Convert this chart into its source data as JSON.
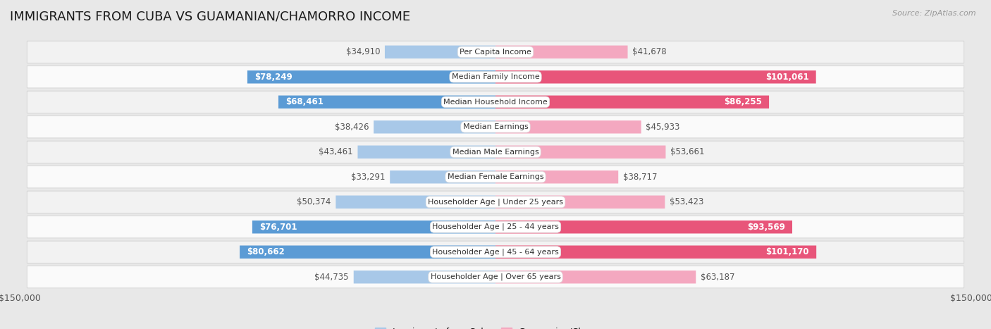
{
  "title": "IMMIGRANTS FROM CUBA VS GUAMANIAN/CHAMORRO INCOME",
  "source": "Source: ZipAtlas.com",
  "categories": [
    "Per Capita Income",
    "Median Family Income",
    "Median Household Income",
    "Median Earnings",
    "Median Male Earnings",
    "Median Female Earnings",
    "Householder Age | Under 25 years",
    "Householder Age | 25 - 44 years",
    "Householder Age | 45 - 64 years",
    "Householder Age | Over 65 years"
  ],
  "cuba_values": [
    34910,
    78249,
    68461,
    38426,
    43461,
    33291,
    50374,
    76701,
    80662,
    44735
  ],
  "guam_values": [
    41678,
    101061,
    86255,
    45933,
    53661,
    38717,
    53423,
    93569,
    101170,
    63187
  ],
  "cuba_labels": [
    "$34,910",
    "$78,249",
    "$68,461",
    "$38,426",
    "$43,461",
    "$33,291",
    "$50,374",
    "$76,701",
    "$80,662",
    "$44,735"
  ],
  "guam_labels": [
    "$41,678",
    "$101,061",
    "$86,255",
    "$45,933",
    "$53,661",
    "$38,717",
    "$53,423",
    "$93,569",
    "$101,170",
    "$63,187"
  ],
  "cuba_color_light": "#a8c8e8",
  "cuba_color_dark": "#5b9bd5",
  "guam_color_light": "#f4a8c0",
  "guam_color_dark": "#e8557a",
  "cuba_dark_threshold": 60000,
  "guam_dark_threshold": 75000,
  "max_value": 150000,
  "legend_cuba": "Immigrants from Cuba",
  "legend_guam": "Guamanian/Chamorro",
  "background_color": "#e8e8e8",
  "row_bg_even": "#f2f2f2",
  "row_bg_odd": "#fafafa",
  "label_fontsize": 8.5,
  "title_fontsize": 13,
  "source_fontsize": 8
}
